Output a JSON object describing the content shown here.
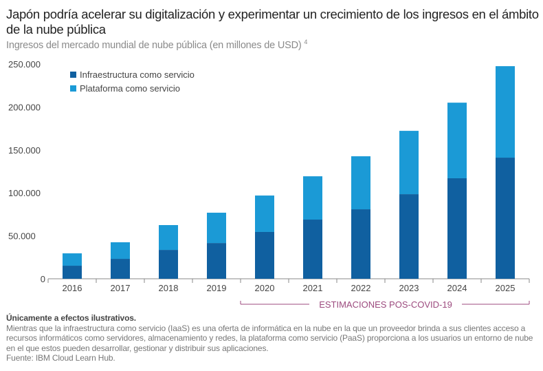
{
  "title": "Japón podría acelerar su digitalización y experimentar un crecimiento de los ingresos en el ámbito de la nube pública",
  "subtitle": "Ingresos del mercado mundial de nube pública (en millones de USD)",
  "subtitle_ref": "4",
  "notes": {
    "disclaimer": "Únicamente a efectos ilustrativos.",
    "description": "Mientras que la infraestructura como servicio (IaaS) es una oferta de informática en la nube en la que un proveedor brinda a sus clientes acceso a recursos informáticos como servidores, almacenamiento y redes, la plataforma como servicio (PaaS) proporciona a los usuarios un entorno de nube en el que estos pueden desarrollar, gestionar y distribuir sus aplicaciones.",
    "source": "Fuente: IBM Cloud Learn Hub."
  },
  "chart_data": {
    "type": "bar",
    "stacked": true,
    "categories": [
      "2016",
      "2017",
      "2018",
      "2019",
      "2020",
      "2021",
      "2022",
      "2023",
      "2024",
      "2025"
    ],
    "series": [
      {
        "name": "Infraestructura como servicio",
        "color": "#1060a0",
        "values": [
          15200,
          23200,
          33600,
          41600,
          54500,
          68900,
          80900,
          98500,
          117000,
          141000
        ]
      },
      {
        "name": "Plataforma como servicio",
        "color": "#1b9ad6",
        "values": [
          14400,
          19300,
          28900,
          35300,
          42400,
          50400,
          61700,
          73700,
          88000,
          106500
        ]
      }
    ],
    "ylim": [
      0,
      250000
    ],
    "yticks": [
      0,
      50000,
      100000,
      150000,
      200000,
      250000
    ],
    "ytick_labels": [
      "0",
      "50.000",
      "100.000",
      "150.000",
      "200.000",
      "250.000"
    ],
    "grid": false,
    "legend_position": "top-left",
    "annotation": {
      "label": "ESTIMACIONES POS-COVID-19",
      "from": "2020",
      "to": "2025",
      "color": "#9c4a7e"
    }
  }
}
